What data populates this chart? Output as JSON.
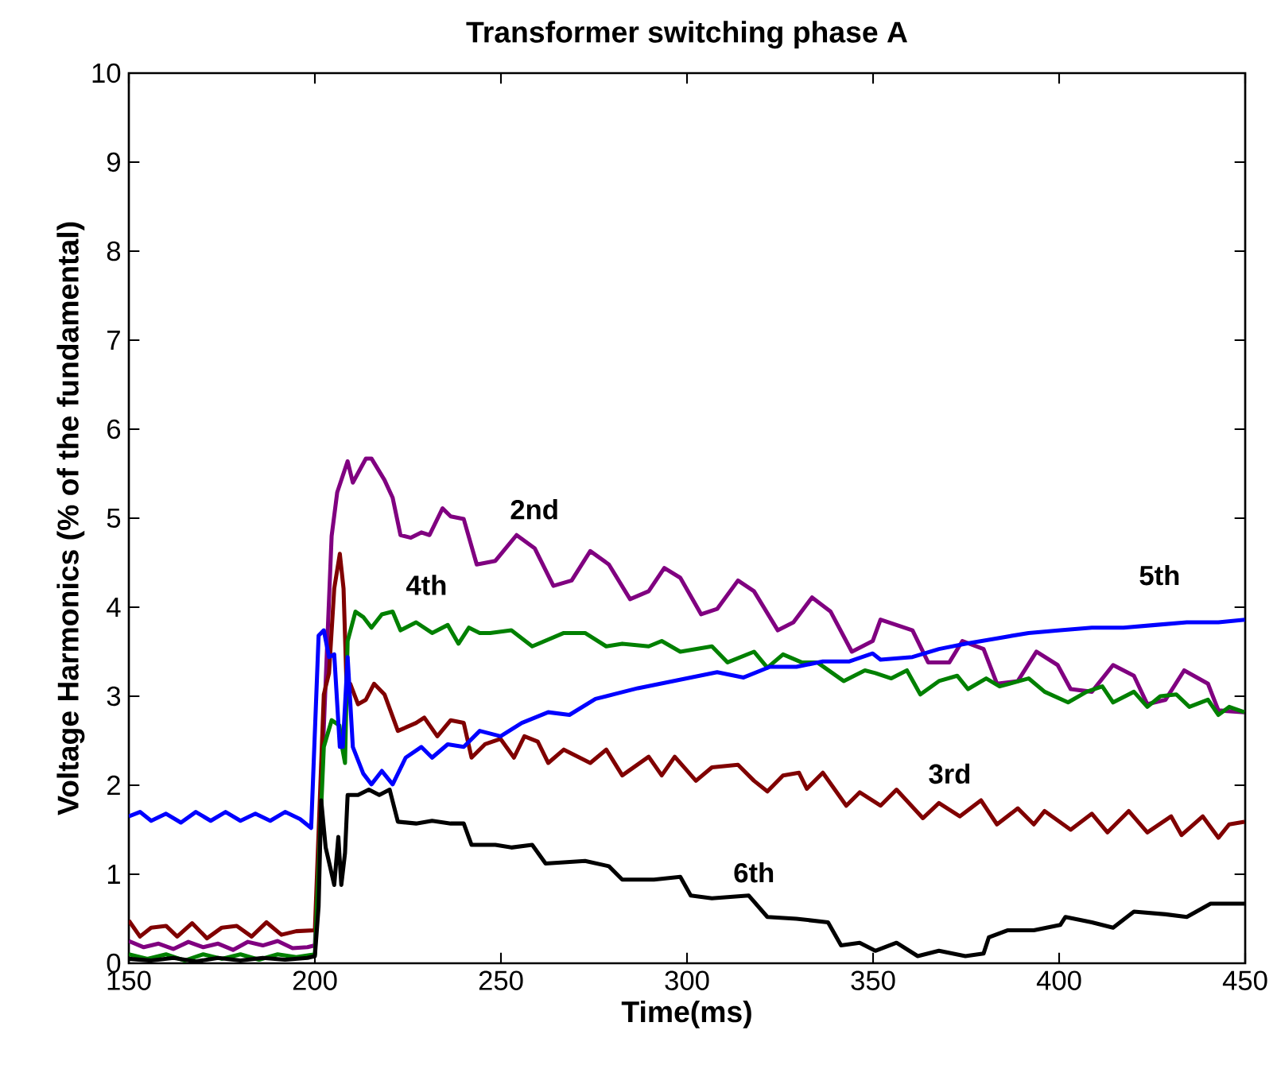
{
  "chart_data": {
    "type": "line",
    "title": "Transformer switching  phase A",
    "xlabel": "Time(ms)",
    "ylabel": "Voltage Harmonics (% of the fundamental)",
    "xlim": [
      150,
      450
    ],
    "ylim": [
      0,
      10
    ],
    "xticks": [
      150,
      200,
      250,
      300,
      350,
      400,
      450
    ],
    "yticks": [
      0,
      1,
      2,
      3,
      4,
      5,
      6,
      7,
      8,
      9,
      10
    ],
    "series": [
      {
        "name": "2nd",
        "color": "#800080",
        "x": [
          150,
          154,
          158,
          162,
          166,
          170,
          174,
          178,
          182,
          186,
          190,
          194,
          198,
          200,
          204.5,
          206,
          208.8,
          210.2,
          213.7,
          215.2,
          218.7,
          220.9,
          223,
          225.8,
          228.6,
          230.8,
          234.3,
          236.5,
          240,
          243.5,
          248.5,
          254.2,
          259.1,
          264.1,
          269,
          274,
          279,
          284.7,
          289.7,
          293.9,
          298.2,
          303.8,
          308.1,
          313.7,
          318,
          324.4,
          328.6,
          333.6,
          338.6,
          344.3,
          349.9,
          352,
          360.6,
          364.8,
          370.5,
          374,
          379.7,
          383.3,
          388.9,
          393.9,
          399.6,
          403.1,
          408.8,
          414.5,
          420.1,
          423.7,
          428.6,
          433.6,
          440,
          442.8,
          449.8
        ],
        "values": [
          0.25,
          0.18,
          0.22,
          0.16,
          0.24,
          0.18,
          0.22,
          0.15,
          0.24,
          0.2,
          0.25,
          0.17,
          0.18,
          0.2,
          4.8,
          5.29,
          5.64,
          5.4,
          5.67,
          5.67,
          5.43,
          5.23,
          4.81,
          4.78,
          4.84,
          4.81,
          5.11,
          5.02,
          4.99,
          4.48,
          4.52,
          4.81,
          4.66,
          4.24,
          4.3,
          4.63,
          4.48,
          4.09,
          4.18,
          4.44,
          4.33,
          3.92,
          3.98,
          4.3,
          4.18,
          3.74,
          3.83,
          4.11,
          3.95,
          3.5,
          3.62,
          3.86,
          3.74,
          3.38,
          3.38,
          3.62,
          3.53,
          3.14,
          3.17,
          3.5,
          3.35,
          3.08,
          3.05,
          3.35,
          3.23,
          2.91,
          2.96,
          3.29,
          3.14,
          2.84,
          2.82
        ]
      },
      {
        "name": "3rd",
        "color": "#800000",
        "x": [
          150,
          153,
          156,
          160,
          163,
          167,
          171,
          175,
          179,
          183,
          187,
          191,
          195,
          200,
          202.4,
          203.8,
          205.2,
          206.7,
          207.7,
          208.5,
          209.5,
          211.6,
          213.7,
          215.9,
          218.7,
          222.3,
          227.2,
          229.4,
          232.9,
          236.5,
          240,
          242.1,
          245.7,
          249.9,
          253.5,
          256.3,
          259.9,
          262.7,
          266.9,
          274,
          278.3,
          282.6,
          289.7,
          293.2,
          296.7,
          302.4,
          306.7,
          313.7,
          318,
          321.6,
          325.8,
          330.1,
          332.2,
          336.5,
          342.8,
          346.4,
          352,
          356.3,
          363.4,
          367.7,
          373.3,
          379,
          383.3,
          388.9,
          393.2,
          396.1,
          403.1,
          408.8,
          413,
          418.7,
          423.7,
          430.1,
          432.9,
          438.6,
          442.8,
          445.7,
          449.8
        ],
        "values": [
          0.48,
          0.3,
          0.4,
          0.42,
          0.3,
          0.45,
          0.28,
          0.4,
          0.42,
          0.3,
          0.46,
          0.32,
          0.36,
          0.37,
          3.02,
          3.26,
          4.21,
          4.6,
          4.21,
          3.14,
          3.14,
          2.91,
          2.96,
          3.14,
          3.02,
          2.61,
          2.7,
          2.76,
          2.55,
          2.73,
          2.7,
          2.31,
          2.46,
          2.52,
          2.31,
          2.55,
          2.49,
          2.25,
          2.4,
          2.25,
          2.4,
          2.11,
          2.32,
          2.11,
          2.32,
          2.05,
          2.2,
          2.23,
          2.05,
          1.93,
          2.11,
          2.14,
          1.96,
          2.14,
          1.77,
          1.92,
          1.77,
          1.95,
          1.63,
          1.8,
          1.65,
          1.83,
          1.56,
          1.74,
          1.56,
          1.71,
          1.5,
          1.68,
          1.47,
          1.71,
          1.47,
          1.65,
          1.44,
          1.65,
          1.41,
          1.56,
          1.59
        ]
      },
      {
        "name": "4th",
        "color": "#008000",
        "x": [
          150,
          155,
          160,
          165,
          170,
          175,
          180,
          185,
          190,
          195,
          200,
          202.4,
          204.5,
          206.6,
          207.3,
          208.1,
          208.8,
          210.9,
          213,
          215.2,
          218,
          220.9,
          223,
          227.2,
          231.5,
          235.7,
          238.6,
          241.4,
          244.3,
          247.1,
          252.8,
          258.4,
          266.9,
          272.6,
          278.3,
          282.6,
          289.7,
          293.2,
          298.2,
          306.7,
          310.9,
          318,
          321.6,
          325.8,
          330.8,
          335,
          342.1,
          347.8,
          350.6,
          354.9,
          359.1,
          362.7,
          367.7,
          372.6,
          375.5,
          380.4,
          384,
          391.8,
          396.1,
          402.4,
          407.4,
          411.6,
          414.5,
          420.1,
          423.7,
          427.2,
          431.5,
          435,
          440,
          442.8,
          445.7,
          449.8
        ],
        "values": [
          0.1,
          0.05,
          0.1,
          0.03,
          0.1,
          0.05,
          0.1,
          0.04,
          0.1,
          0.07,
          0.1,
          2.43,
          2.73,
          2.67,
          2.43,
          2.25,
          3.62,
          3.95,
          3.89,
          3.77,
          3.92,
          3.95,
          3.74,
          3.83,
          3.71,
          3.8,
          3.59,
          3.77,
          3.71,
          3.71,
          3.74,
          3.56,
          3.71,
          3.71,
          3.56,
          3.59,
          3.56,
          3.62,
          3.5,
          3.56,
          3.38,
          3.5,
          3.32,
          3.47,
          3.38,
          3.38,
          3.17,
          3.29,
          3.26,
          3.2,
          3.29,
          3.02,
          3.17,
          3.23,
          3.08,
          3.2,
          3.11,
          3.2,
          3.05,
          2.93,
          3.05,
          3.11,
          2.93,
          3.05,
          2.88,
          3.0,
          3.02,
          2.88,
          2.96,
          2.79,
          2.88,
          2.82
        ]
      },
      {
        "name": "5th",
        "color": "#0000ff",
        "x": [
          150,
          153,
          156,
          160,
          164,
          168,
          172,
          176,
          180,
          184,
          188,
          192,
          196,
          199,
          201,
          202.4,
          203.8,
          205.2,
          206.7,
          207.5,
          208.8,
          210.2,
          213,
          215.2,
          218,
          220.9,
          224.4,
          228.6,
          231.5,
          235.7,
          240,
          244.3,
          249.9,
          255.6,
          262.7,
          268.4,
          275.4,
          281.1,
          286.8,
          293.9,
          301,
          308.1,
          315.2,
          322.3,
          329.4,
          336.5,
          343.5,
          349.9,
          352,
          360.6,
          367.7,
          374.8,
          383.3,
          391.8,
          400.3,
          408.8,
          417.3,
          425.8,
          434.3,
          442.8,
          449.9
        ],
        "values": [
          1.65,
          1.7,
          1.6,
          1.68,
          1.58,
          1.7,
          1.6,
          1.7,
          1.6,
          1.68,
          1.6,
          1.7,
          1.62,
          1.52,
          3.68,
          3.74,
          3.44,
          3.47,
          2.43,
          2.43,
          3.44,
          2.43,
          2.13,
          2.01,
          2.16,
          2.01,
          2.31,
          2.43,
          2.31,
          2.46,
          2.43,
          2.61,
          2.55,
          2.7,
          2.82,
          2.79,
          2.97,
          3.03,
          3.09,
          3.15,
          3.21,
          3.27,
          3.21,
          3.33,
          3.33,
          3.39,
          3.39,
          3.48,
          3.41,
          3.44,
          3.53,
          3.59,
          3.65,
          3.71,
          3.74,
          3.77,
          3.77,
          3.8,
          3.83,
          3.83,
          3.86
        ]
      },
      {
        "name": "6th",
        "color": "#000000",
        "x": [
          150,
          156,
          162,
          168,
          174,
          180,
          186,
          192,
          198,
          200,
          201,
          201.7,
          202.9,
          205.2,
          206.3,
          207.1,
          208.1,
          208.8,
          211.6,
          214.5,
          217.3,
          220.1,
          222.3,
          227.2,
          231.5,
          236.5,
          240,
          242.1,
          248.5,
          252.8,
          258.4,
          262,
          272.6,
          279,
          282.6,
          291.1,
          298.2,
          301,
          306.7,
          316.6,
          321.6,
          329.4,
          337.9,
          341.4,
          346.4,
          350.6,
          356.3,
          362,
          367.7,
          374.8,
          379.7,
          381.1,
          386.1,
          393.2,
          400.3,
          401.7,
          408.8,
          414.5,
          420.1,
          428.6,
          434.3,
          440.7,
          449.8
        ],
        "values": [
          0.05,
          0.03,
          0.06,
          0.02,
          0.06,
          0.03,
          0.06,
          0.04,
          0.06,
          0.08,
          0.64,
          1.83,
          1.3,
          0.88,
          1.42,
          0.88,
          1.24,
          1.89,
          1.89,
          1.95,
          1.89,
          1.95,
          1.59,
          1.57,
          1.6,
          1.57,
          1.57,
          1.33,
          1.33,
          1.3,
          1.33,
          1.12,
          1.15,
          1.09,
          0.94,
          0.94,
          0.97,
          0.76,
          0.73,
          0.76,
          0.52,
          0.5,
          0.46,
          0.2,
          0.23,
          0.14,
          0.23,
          0.08,
          0.14,
          0.08,
          0.11,
          0.29,
          0.37,
          0.37,
          0.43,
          0.52,
          0.46,
          0.4,
          0.58,
          0.55,
          0.52,
          0.67,
          0.67
        ]
      }
    ]
  }
}
